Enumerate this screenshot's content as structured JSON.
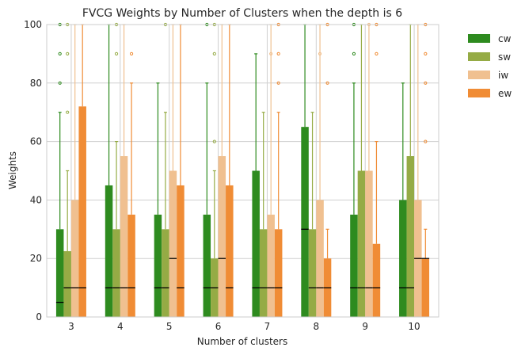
{
  "chart_data": {
    "type": "bar",
    "title": "FVCG Weights by Number of Clusters when the depth is 6",
    "xlabel": "Number of clusters",
    "ylabel": "Weights",
    "ylim": [
      0,
      100
    ],
    "yticks": [
      0,
      20,
      40,
      60,
      80,
      100
    ],
    "grid": true,
    "legend_position": "outside-top-right",
    "categories": [
      "3",
      "4",
      "5",
      "6",
      "7",
      "8",
      "9",
      "10"
    ],
    "series": [
      {
        "name": "cw",
        "color": "#2e8b1f",
        "values": [
          30,
          45,
          35,
          35,
          50,
          65,
          35,
          40
        ],
        "medians": [
          5,
          10,
          10,
          10,
          10,
          30,
          10,
          10
        ],
        "whisker_high": [
          70,
          100,
          80,
          80,
          90,
          100,
          80,
          80
        ],
        "outliers": [
          [
            80,
            90,
            100
          ],
          [],
          [],
          [
            100
          ],
          [],
          [],
          [
            90,
            100
          ],
          []
        ]
      },
      {
        "name": "sw",
        "color": "#95ab45",
        "values": [
          22.5,
          30,
          30,
          20,
          30,
          30,
          50,
          55
        ],
        "medians": [
          10,
          10,
          10,
          10,
          10,
          10,
          10,
          10
        ],
        "whisker_high": [
          50,
          60,
          70,
          50,
          70,
          70,
          100,
          100
        ],
        "outliers": [
          [
            70,
            90,
            100
          ],
          [
            90,
            100
          ],
          [
            100
          ],
          [
            60,
            90,
            100
          ],
          [],
          [],
          [],
          []
        ]
      },
      {
        "name": "iw",
        "color": "#f0c090",
        "values": [
          40,
          55,
          50,
          55,
          35,
          40,
          50,
          40
        ],
        "medians": [
          10,
          10,
          20,
          20,
          10,
          10,
          10,
          20
        ],
        "whisker_high": [
          100,
          100,
          100,
          100,
          100,
          100,
          100,
          100
        ],
        "outliers": [
          [],
          [],
          [],
          [],
          [
            90
          ],
          [
            90
          ],
          [
            100
          ],
          []
        ]
      },
      {
        "name": "ew",
        "color": "#f08c35",
        "values": [
          72,
          35,
          45,
          45,
          30,
          20,
          25,
          20
        ],
        "medians": [
          10,
          10,
          10,
          10,
          10,
          10,
          10,
          20
        ],
        "whisker_high": [
          100,
          80,
          100,
          100,
          70,
          30,
          60,
          30
        ],
        "outliers": [
          [],
          [
            90
          ],
          [],
          [],
          [
            80,
            90,
            100
          ],
          [
            80,
            100
          ],
          [
            90,
            100
          ],
          [
            60,
            80,
            90,
            100
          ]
        ]
      }
    ]
  }
}
